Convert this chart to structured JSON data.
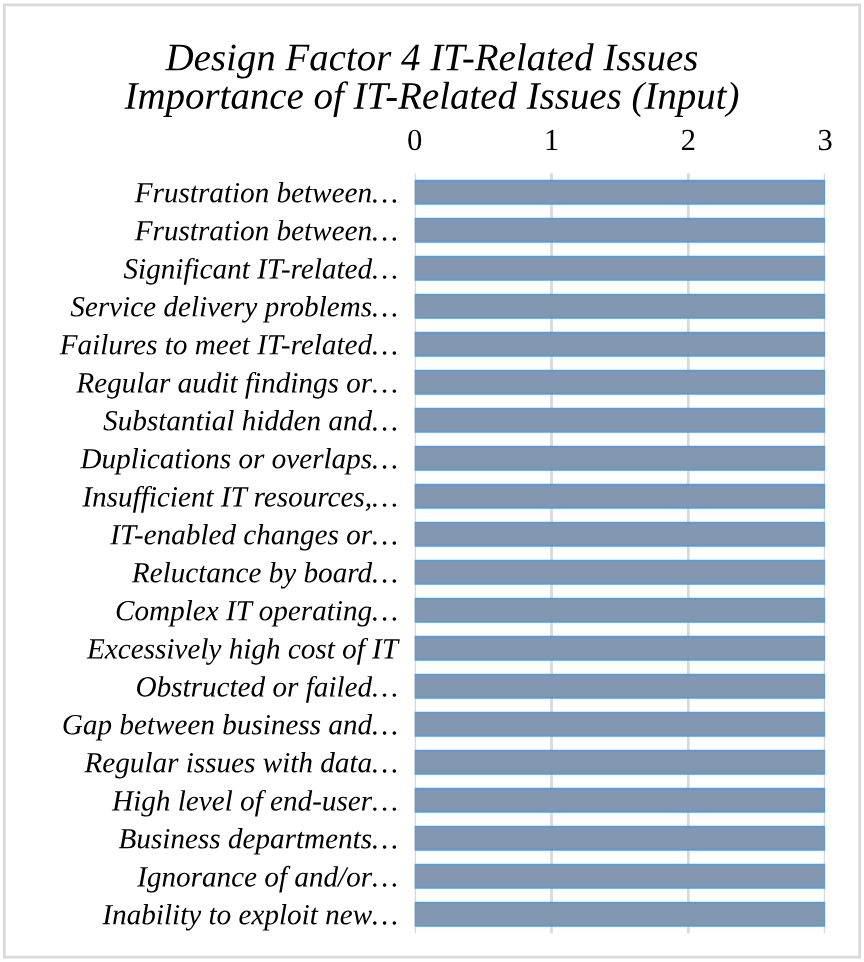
{
  "chart_data": {
    "type": "bar",
    "orientation": "horizontal",
    "title": "Design Factor 4 IT-Related Issues\nImportance of IT-Related Issues (Input)",
    "categories": [
      "Frustration between…",
      "Frustration between…",
      "Significant IT-related…",
      "Service delivery problems…",
      "Failures to meet IT-related…",
      "Regular audit findings or…",
      "Substantial hidden and…",
      "Duplications or overlaps…",
      "Insufficient IT resources,…",
      "IT-enabled changes or…",
      "Reluctance by board…",
      "Complex IT operating…",
      "Excessively high cost of IT",
      "Obstructed or failed…",
      "Gap between business and…",
      "Regular issues with data…",
      "High level of end-user…",
      "Business departments…",
      "Ignorance of and/or…",
      "Inability to exploit new…"
    ],
    "values": [
      3,
      3,
      3,
      3,
      3,
      3,
      3,
      3,
      3,
      3,
      3,
      3,
      3,
      3,
      3,
      3,
      3,
      3,
      3,
      3
    ],
    "color": "#8497b0",
    "xlim": [
      0,
      3
    ],
    "xticks": [
      0,
      1,
      2,
      3
    ],
    "grid": "x"
  }
}
